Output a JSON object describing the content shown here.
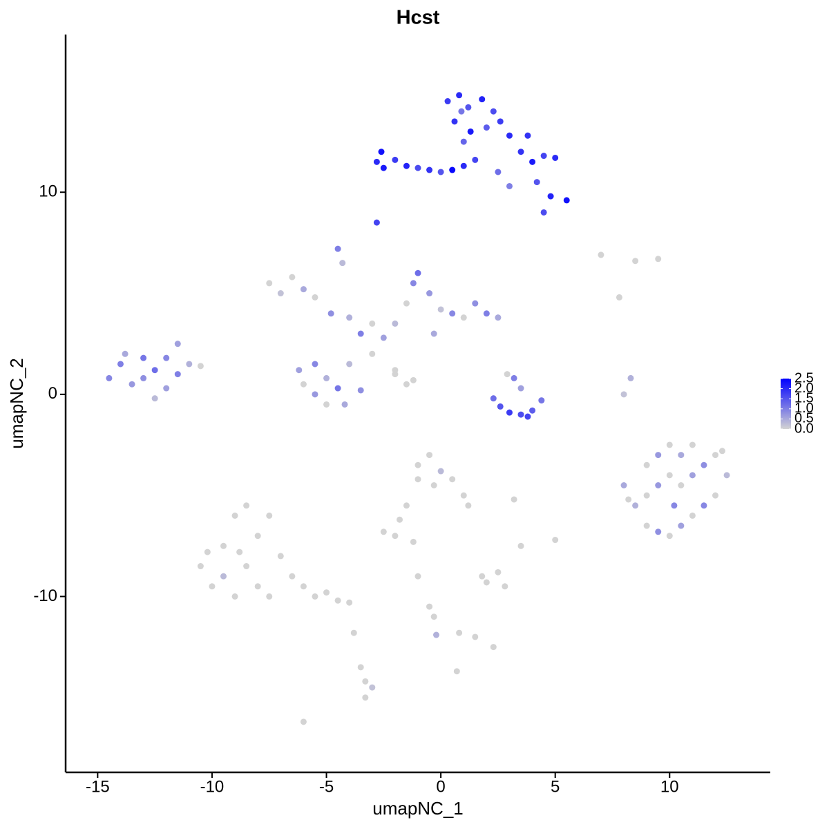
{
  "chart_data": {
    "type": "scatter",
    "title": "Hcst",
    "x_label": "umapNC_1",
    "y_label": "umapNC_2",
    "xlim": [
      -16.4,
      14.4
    ],
    "ylim": [
      -18.7,
      17.8
    ],
    "xticks": [
      -15,
      -10,
      -5,
      0,
      5,
      10
    ],
    "yticks": [
      -10,
      0,
      10
    ],
    "x": [
      -2.8,
      -2.5,
      -2.0,
      -1.5,
      -1.0,
      -0.5,
      0,
      0.5,
      1.0,
      1.5,
      0.3,
      0.8,
      1.2,
      1.8,
      2.3,
      0.6,
      1.3,
      2.0,
      2.6,
      1.0,
      3.0,
      3.5,
      4.0,
      4.5,
      5.0,
      4.2,
      4.8,
      5.5,
      4.5,
      3.0,
      -2.8,
      -2.6,
      2.5,
      3.8,
      0.9,
      -7.5,
      -7.0,
      -6.5,
      -6.0,
      -5.5,
      -4.5,
      -4.3,
      -4.8,
      -4.0,
      -3.5,
      -3.0,
      -2.5,
      -2.0,
      -1.5,
      -1.2,
      -1.0,
      -0.5,
      0,
      0.5,
      1.0,
      1.5,
      2.0,
      2.5,
      -5.5,
      -5.0,
      -6.0,
      -5.5,
      -4.5,
      -4.0,
      -3.5,
      -4.2,
      -5.0,
      -6.2,
      -3.0,
      -2.0,
      -1.5,
      -0.3,
      -14.5,
      -14.0,
      -13.5,
      -13.0,
      -13.0,
      -12.5,
      -12.0,
      -12.0,
      -11.5,
      -11.0,
      -12.5,
      -11.5,
      -13.8,
      -10.5,
      2.3,
      2.6,
      3.0,
      3.5,
      4.0,
      4.4,
      3.2,
      3.5,
      2.9,
      3.8,
      9.0,
      9.5,
      10.0,
      10.5,
      11.0,
      11.5,
      12.0,
      12.5,
      12.0,
      11.5,
      11.0,
      10.5,
      10.0,
      9.5,
      9.0,
      8.5,
      9.0,
      9.5,
      10.0,
      10.5,
      11.0,
      10.2,
      8.0,
      8.2,
      12.3,
      -10.5,
      -10.0,
      -9.5,
      -9.0,
      -8.5,
      -8.0,
      -8.5,
      -8.0,
      -7.5,
      -9.0,
      -7.0,
      -7.5,
      -9.5,
      -6.5,
      -6.0,
      -5.5,
      -5.0,
      -4.5,
      -4.0,
      -8.8,
      -10.2,
      -1.0,
      -0.5,
      0,
      0.5,
      -1.0,
      -0.3,
      1.0,
      1.2,
      -1.5,
      -1.8,
      -2.5,
      -2.0,
      -1.2,
      2.5,
      2.0,
      2.8,
      1.8,
      5.0,
      3.2,
      3.5,
      -0.5,
      -0.3,
      -0.2,
      0.8,
      1.5,
      2.3,
      -3.5,
      -3.3,
      -3.3,
      -3.0,
      -6.0,
      0.7,
      -3.8,
      -1.0,
      8.3,
      8.0,
      7.0,
      7.8,
      9.5,
      8.5,
      -2.0,
      -1.2
    ],
    "y": [
      11.5,
      11.2,
      11.6,
      11.3,
      11.2,
      11.1,
      11.0,
      11.1,
      11.3,
      11.6,
      14.5,
      14.8,
      14.2,
      14.6,
      14.0,
      13.5,
      13.0,
      13.2,
      13.5,
      12.5,
      12.8,
      12.0,
      11.5,
      11.8,
      11.7,
      10.5,
      9.8,
      9.6,
      9.0,
      10.3,
      8.5,
      12.0,
      11.0,
      12.8,
      14.0,
      5.5,
      5.0,
      5.8,
      5.2,
      4.8,
      7.2,
      6.5,
      4.0,
      3.8,
      3.0,
      3.5,
      2.8,
      3.5,
      4.5,
      5.5,
      6.0,
      5.0,
      4.2,
      4.0,
      3.8,
      4.5,
      4.0,
      3.8,
      1.5,
      0.8,
      0.5,
      0,
      0.3,
      1.5,
      0.2,
      -0.5,
      -0.5,
      1.2,
      2.0,
      1.0,
      0.5,
      3.0,
      0.8,
      1.5,
      0.5,
      1.8,
      0.8,
      1.2,
      0.3,
      1.8,
      1.0,
      1.5,
      -0.2,
      2.5,
      2.0,
      1.4,
      -0.2,
      -0.6,
      -0.9,
      -1.0,
      -0.8,
      -0.3,
      0.8,
      0.3,
      1.0,
      -1.1,
      -3.5,
      -3.0,
      -2.5,
      -3.0,
      -2.5,
      -3.5,
      -3.0,
      -4.0,
      -5.0,
      -5.5,
      -6.0,
      -6.5,
      -7.0,
      -6.8,
      -6.5,
      -5.5,
      -5.0,
      -4.5,
      -4.0,
      -4.5,
      -4.0,
      -5.5,
      -4.5,
      -5.2,
      -2.8,
      -8.5,
      -9.5,
      -7.5,
      -6.0,
      -5.5,
      -7.0,
      -8.5,
      -9.5,
      -10.0,
      -10.0,
      -8.0,
      -6.0,
      -9.0,
      -9.0,
      -9.5,
      -10.0,
      -9.8,
      -10.2,
      -10.3,
      -7.8,
      -7.8,
      -3.5,
      -3.0,
      -3.8,
      -4.2,
      -4.2,
      -4.5,
      -5.0,
      -5.5,
      -5.5,
      -6.2,
      -6.8,
      -7.0,
      -7.3,
      -8.8,
      -9.3,
      -9.5,
      -9.0,
      -7.2,
      -5.2,
      -7.5,
      -10.5,
      -11.0,
      -11.9,
      -11.8,
      -12.0,
      -12.5,
      -13.5,
      -14.2,
      -15.0,
      -14.5,
      -16.2,
      -13.7,
      -11.8,
      -9.0,
      0.8,
      0,
      6.9,
      4.8,
      6.7,
      6.6,
      1.2,
      0.7
    ],
    "values": [
      2.0,
      2.2,
      1.8,
      2.1,
      1.6,
      1.9,
      1.5,
      2.4,
      2.0,
      1.7,
      1.8,
      2.0,
      1.5,
      2.1,
      1.6,
      1.9,
      2.2,
      1.4,
      1.8,
      1.3,
      2.0,
      1.9,
      2.2,
      1.7,
      2.0,
      1.5,
      2.1,
      2.3,
      1.6,
      1.0,
      1.7,
      2.3,
      1.2,
      1.9,
      1.1,
      0,
      0.2,
      0,
      0.5,
      0,
      1.0,
      0.3,
      0.8,
      0.4,
      1.0,
      0,
      0.6,
      0.3,
      0,
      0.9,
      1.2,
      0.7,
      0.2,
      0.9,
      0,
      0.8,
      1.0,
      0.5,
      0.9,
      0.4,
      0,
      0.7,
      1.1,
      0.3,
      0.8,
      0.5,
      0,
      0.6,
      0,
      0,
      0,
      0.5,
      0.9,
      1.0,
      0.7,
      1.1,
      0.8,
      1.2,
      0.6,
      0.9,
      1.0,
      0.4,
      0.3,
      0.6,
      0.5,
      0,
      1.2,
      1.5,
      1.8,
      1.6,
      1.4,
      1.1,
      1.0,
      0.6,
      0,
      1.7,
      0,
      0.7,
      0,
      0.5,
      0,
      0.8,
      0,
      0.3,
      0,
      0.9,
      0,
      0.6,
      0,
      0.8,
      0,
      0.4,
      0,
      0.7,
      0,
      0,
      0.6,
      0.9,
      0.5,
      0,
      0,
      0,
      0,
      0,
      0,
      0,
      0,
      0,
      0,
      0,
      0,
      0,
      0,
      0.3,
      0,
      0,
      0,
      0,
      0,
      0,
      0,
      0,
      0,
      0,
      0.3,
      0,
      0,
      0,
      0,
      0,
      0,
      0,
      0,
      0,
      0,
      0,
      0,
      0,
      0,
      0,
      0,
      0,
      0,
      0,
      0.4,
      0,
      0,
      0,
      0,
      0,
      0,
      0.2,
      0,
      0,
      0,
      0,
      0.4,
      0.2,
      0,
      0,
      0,
      0,
      0,
      0
    ],
    "colorbar": {
      "lim": [
        0,
        2.5
      ],
      "low_color": "#d3d3d3",
      "high_color": "#0000ff",
      "ticks": [
        {
          "value": 0,
          "label": "0.0"
        },
        0.5,
        {
          "value": 1,
          "label": "1.0"
        },
        1.5,
        {
          "value": 2,
          "label": "2.0"
        },
        2.5
      ]
    }
  }
}
